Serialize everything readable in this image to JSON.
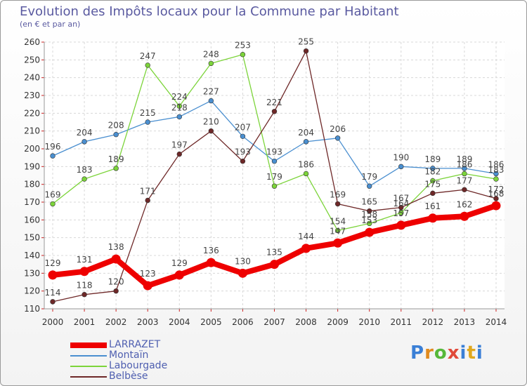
{
  "title": "Evolution des Impôts locaux pour la Commune par Habitant",
  "subtitle": "(en € et par an)",
  "logo_text": "Proxiti",
  "chart_data": {
    "type": "line",
    "title": "Evolution des Impôts locaux pour la Commune par Habitant",
    "subtitle": "(en € et par an)",
    "xlabel": "",
    "ylabel": "",
    "ylim": [
      110,
      260
    ],
    "yticks": [
      "110",
      "120",
      "130",
      "140",
      "150",
      "160",
      "170",
      "180",
      "190",
      "200",
      "210",
      "220",
      "230",
      "240",
      "250",
      "260"
    ],
    "x": [
      "2000",
      "2001",
      "2002",
      "2003",
      "2004",
      "2005",
      "2006",
      "2007",
      "2008",
      "2009",
      "2010",
      "2011",
      "2012",
      "2013",
      "2014"
    ],
    "grid": true,
    "legend_position": "bottom-left",
    "series": [
      {
        "name": "LARRAZET",
        "color": "#ee0000",
        "values": [
          129,
          131,
          138,
          123,
          129,
          136,
          130,
          135,
          144,
          147,
          153,
          157,
          161,
          162,
          168
        ],
        "labels": [
          "129",
          "131",
          "138",
          "123",
          "129",
          "136",
          "130",
          "135",
          "144",
          "147",
          "153",
          "157",
          "161",
          "162",
          "168"
        ]
      },
      {
        "name": "Montaïn",
        "color": "#4a8fd0",
        "values": [
          196,
          204,
          208,
          215,
          218,
          227,
          207,
          193,
          204,
          206,
          179,
          190,
          189,
          189,
          186
        ],
        "labels": [
          "196",
          "204",
          "208",
          "215",
          "218",
          "227",
          "207",
          "193",
          "204",
          "206",
          "179",
          "190",
          "189",
          "189",
          "186"
        ]
      },
      {
        "name": "Labourgade",
        "color": "#7cd43a",
        "values": [
          169,
          183,
          189,
          247,
          224,
          248,
          253,
          179,
          186,
          154,
          158,
          164,
          182,
          186,
          183
        ],
        "labels": [
          "169",
          "183",
          "189",
          "247",
          "224",
          "248",
          "253",
          "179",
          "186",
          "154",
          "158",
          "164",
          "182",
          "186",
          "183"
        ]
      },
      {
        "name": "Belbèse",
        "color": "#6e2828",
        "values": [
          114,
          118,
          120,
          171,
          197,
          210,
          193,
          221,
          255,
          169,
          165,
          167,
          175,
          177,
          172
        ],
        "labels": [
          "114",
          "118",
          "120",
          "171",
          "197",
          "210",
          "193",
          "221",
          "255",
          "169",
          "165",
          "167",
          "175",
          "177",
          "172"
        ]
      }
    ]
  }
}
